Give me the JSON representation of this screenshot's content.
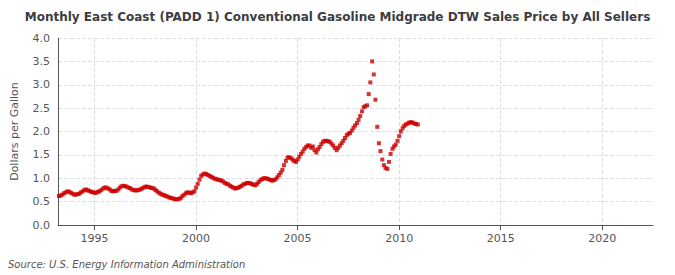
{
  "chart_data": {
    "type": "scatter",
    "title": "Monthly East Coast (PADD 1) Conventional Gasoline Midgrade DTW Sales Price by All Sellers",
    "ylabel": "Dollars per Gallon",
    "annotations": [
      "Source: U.S. Energy Information Administration"
    ],
    "color": "#cc0000",
    "marker": "square",
    "grid": true,
    "xlim": [
      1993.2,
      2022.5
    ],
    "ylim": [
      0.0,
      4.0
    ],
    "xticks": [
      1995,
      2000,
      2005,
      2010,
      2015,
      2020
    ],
    "yticks": [
      {
        "value": 0.0,
        "label": "0.0"
      },
      0.5,
      {
        "value": 1.0,
        "label": "1.0"
      },
      1.5,
      {
        "value": 2.0,
        "label": "2.0"
      },
      2.5,
      {
        "value": 3.0,
        "label": "3.0"
      },
      3.5,
      {
        "value": 4.0,
        "label": "4.0"
      }
    ],
    "x": [
      1993.25,
      1993.33,
      1993.42,
      1993.5,
      1993.58,
      1993.67,
      1993.75,
      1993.83,
      1993.92,
      1994.0,
      1994.08,
      1994.17,
      1994.25,
      1994.33,
      1994.42,
      1994.5,
      1994.58,
      1994.67,
      1994.75,
      1994.83,
      1994.92,
      1995.0,
      1995.08,
      1995.17,
      1995.25,
      1995.33,
      1995.42,
      1995.5,
      1995.58,
      1995.67,
      1995.75,
      1995.83,
      1995.92,
      1996.0,
      1996.08,
      1996.17,
      1996.25,
      1996.33,
      1996.42,
      1996.5,
      1996.58,
      1996.67,
      1996.75,
      1996.83,
      1996.92,
      1997.0,
      1997.08,
      1997.17,
      1997.25,
      1997.33,
      1997.42,
      1997.5,
      1997.58,
      1997.67,
      1997.75,
      1997.83,
      1997.92,
      1998.0,
      1998.08,
      1998.17,
      1998.25,
      1998.33,
      1998.42,
      1998.5,
      1998.58,
      1998.67,
      1998.75,
      1998.83,
      1998.92,
      1999.0,
      1999.08,
      1999.17,
      1999.25,
      1999.33,
      1999.42,
      1999.5,
      1999.58,
      1999.67,
      1999.75,
      1999.83,
      1999.92,
      2000.0,
      2000.08,
      2000.17,
      2000.25,
      2000.33,
      2000.42,
      2000.5,
      2000.58,
      2000.67,
      2000.75,
      2000.83,
      2000.92,
      2001.0,
      2001.08,
      2001.17,
      2001.25,
      2001.33,
      2001.42,
      2001.5,
      2001.58,
      2001.67,
      2001.75,
      2001.83,
      2001.92,
      2002.0,
      2002.08,
      2002.17,
      2002.25,
      2002.33,
      2002.42,
      2002.5,
      2002.58,
      2002.67,
      2002.75,
      2002.83,
      2002.92,
      2003.0,
      2003.08,
      2003.17,
      2003.25,
      2003.33,
      2003.42,
      2003.5,
      2003.58,
      2003.67,
      2003.75,
      2003.83,
      2003.92,
      2004.0,
      2004.08,
      2004.17,
      2004.25,
      2004.33,
      2004.42,
      2004.5,
      2004.58,
      2004.67,
      2004.75,
      2004.83,
      2004.92,
      2005.0,
      2005.08,
      2005.17,
      2005.25,
      2005.33,
      2005.42,
      2005.5,
      2005.58,
      2005.67,
      2005.75,
      2005.83,
      2005.92,
      2006.0,
      2006.08,
      2006.17,
      2006.25,
      2006.33,
      2006.42,
      2006.5,
      2006.58,
      2006.67,
      2006.75,
      2006.83,
      2006.92,
      2007.0,
      2007.08,
      2007.17,
      2007.25,
      2007.33,
      2007.42,
      2007.5,
      2007.58,
      2007.67,
      2007.75,
      2007.83,
      2007.92,
      2008.0,
      2008.08,
      2008.17,
      2008.25,
      2008.33,
      2008.42,
      2008.5,
      2008.58,
      2008.67,
      2008.75,
      2008.83,
      2008.92,
      2009.0,
      2009.08,
      2009.17,
      2009.25,
      2009.33,
      2009.42,
      2009.5,
      2009.58,
      2009.67,
      2009.75,
      2009.83,
      2009.92,
      2010.0,
      2010.08,
      2010.17,
      2010.25,
      2010.33,
      2010.42,
      2010.5,
      2010.58,
      2010.67,
      2010.75,
      2010.83,
      2010.92
    ],
    "values": [
      0.62,
      0.63,
      0.65,
      0.68,
      0.7,
      0.72,
      0.71,
      0.69,
      0.67,
      0.65,
      0.65,
      0.66,
      0.67,
      0.7,
      0.72,
      0.75,
      0.76,
      0.74,
      0.73,
      0.71,
      0.7,
      0.69,
      0.69,
      0.71,
      0.72,
      0.75,
      0.78,
      0.8,
      0.8,
      0.78,
      0.76,
      0.73,
      0.72,
      0.73,
      0.73,
      0.76,
      0.8,
      0.83,
      0.84,
      0.83,
      0.82,
      0.8,
      0.79,
      0.76,
      0.75,
      0.74,
      0.74,
      0.75,
      0.76,
      0.78,
      0.8,
      0.82,
      0.82,
      0.81,
      0.8,
      0.79,
      0.78,
      0.75,
      0.72,
      0.69,
      0.67,
      0.65,
      0.64,
      0.62,
      0.61,
      0.59,
      0.58,
      0.57,
      0.56,
      0.55,
      0.55,
      0.56,
      0.58,
      0.62,
      0.65,
      0.68,
      0.7,
      0.69,
      0.68,
      0.7,
      0.72,
      0.8,
      0.88,
      0.97,
      1.05,
      1.08,
      1.1,
      1.09,
      1.07,
      1.05,
      1.03,
      1.01,
      0.99,
      0.98,
      0.97,
      0.96,
      0.95,
      0.93,
      0.9,
      0.88,
      0.87,
      0.84,
      0.82,
      0.8,
      0.78,
      0.79,
      0.8,
      0.82,
      0.84,
      0.87,
      0.88,
      0.9,
      0.9,
      0.89,
      0.88,
      0.86,
      0.85,
      0.88,
      0.92,
      0.96,
      0.98,
      1.0,
      1.0,
      0.99,
      0.98,
      0.96,
      0.95,
      0.96,
      0.98,
      1.02,
      1.07,
      1.12,
      1.18,
      1.28,
      1.37,
      1.44,
      1.45,
      1.43,
      1.4,
      1.37,
      1.35,
      1.4,
      1.46,
      1.52,
      1.57,
      1.63,
      1.67,
      1.7,
      1.7,
      1.65,
      1.68,
      1.6,
      1.55,
      1.62,
      1.67,
      1.73,
      1.78,
      1.8,
      1.8,
      1.79,
      1.78,
      1.74,
      1.7,
      1.65,
      1.6,
      1.65,
      1.7,
      1.75,
      1.8,
      1.86,
      1.92,
      1.95,
      1.97,
      2.02,
      2.08,
      2.13,
      2.18,
      2.25,
      2.33,
      2.43,
      2.52,
      2.54,
      2.56,
      2.8,
      3.05,
      3.5,
      3.22,
      2.68,
      2.1,
      1.75,
      1.58,
      1.4,
      1.28,
      1.22,
      1.2,
      1.35,
      1.52,
      1.63,
      1.68,
      1.72,
      1.8,
      1.9,
      2.0,
      2.07,
      2.12,
      2.15,
      2.17,
      2.19,
      2.2,
      2.19,
      2.17,
      2.16,
      2.15
    ]
  }
}
